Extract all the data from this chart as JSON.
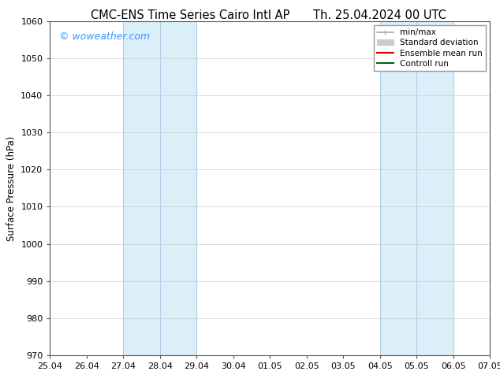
{
  "title": "CMC-ENS Time Series Cairo Intl AP",
  "title_right": "Th. 25.04.2024 00 UTC",
  "ylabel": "Surface Pressure (hPa)",
  "watermark": "© woweather.com",
  "watermark_color": "#3399ff",
  "ylim": [
    970,
    1060
  ],
  "yticks": [
    970,
    980,
    990,
    1000,
    1010,
    1020,
    1030,
    1040,
    1050,
    1060
  ],
  "xtick_labels": [
    "25.04",
    "26.04",
    "27.04",
    "28.04",
    "29.04",
    "30.04",
    "01.05",
    "02.05",
    "03.05",
    "04.05",
    "05.05",
    "06.05",
    "07.05"
  ],
  "xtick_positions": [
    0,
    1,
    2,
    3,
    4,
    5,
    6,
    7,
    8,
    9,
    10,
    11,
    12
  ],
  "shaded_bands": [
    {
      "x_start": 2,
      "x_end": 4
    },
    {
      "x_start": 9,
      "x_end": 11
    }
  ],
  "shaded_color": "#dceef8",
  "shaded_divider_color": "#b0d0e8",
  "legend_items": [
    {
      "label": "min/max",
      "color": "#aaaaaa",
      "lw": 1.2,
      "linestyle": "-"
    },
    {
      "label": "Standard deviation",
      "color": "#cccccc",
      "lw": 5,
      "linestyle": "-"
    },
    {
      "label": "Ensemble mean run",
      "color": "#dd0000",
      "lw": 1.5,
      "linestyle": "-"
    },
    {
      "label": "Controll run",
      "color": "#006600",
      "lw": 1.5,
      "linestyle": "-"
    }
  ],
  "bg_color": "#ffffff",
  "grid_color": "#cccccc",
  "spine_color": "#555555",
  "title_fontsize": 10.5,
  "axis_label_fontsize": 8.5,
  "tick_fontsize": 8,
  "watermark_fontsize": 9,
  "legend_fontsize": 7.5
}
